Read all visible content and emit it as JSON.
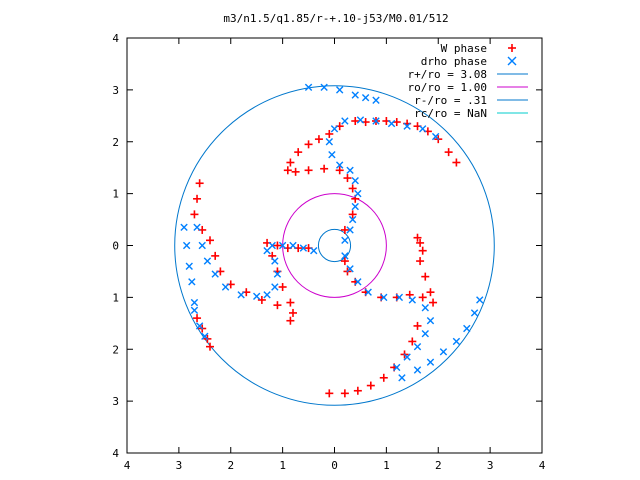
{
  "chart_data": {
    "type": "scatter",
    "title": "m3/n1.5/q1.85/r-+.10-j53/M0.01/512",
    "xlabel": "",
    "ylabel": "",
    "xlim": [
      -4,
      4
    ],
    "ylim": [
      -4,
      4
    ],
    "x_ticks": [
      "4",
      "3",
      "2",
      "1",
      "0",
      "1",
      "2",
      "3",
      "4"
    ],
    "y_ticks": [
      "4",
      "3",
      "2",
      "1",
      "0",
      "1",
      "2",
      "3",
      "4"
    ],
    "grid": false,
    "legend_position": "top-right",
    "series": [
      {
        "name": "W phase",
        "marker": "+",
        "color": "#ff0000",
        "points": [
          [
            2.35,
            1.6
          ],
          [
            2.2,
            1.8
          ],
          [
            2.0,
            2.05
          ],
          [
            1.8,
            2.2
          ],
          [
            1.6,
            2.3
          ],
          [
            1.4,
            2.35
          ],
          [
            1.2,
            2.38
          ],
          [
            1.0,
            2.4
          ],
          [
            0.8,
            2.4
          ],
          [
            0.6,
            2.38
          ],
          [
            0.4,
            2.4
          ],
          [
            0.1,
            2.3
          ],
          [
            -0.1,
            2.15
          ],
          [
            -0.3,
            2.05
          ],
          [
            -0.5,
            1.95
          ],
          [
            -0.7,
            1.8
          ],
          [
            -0.85,
            1.6
          ],
          [
            -0.9,
            1.45
          ],
          [
            -0.75,
            1.42
          ],
          [
            -0.5,
            1.45
          ],
          [
            -0.2,
            1.48
          ],
          [
            0.1,
            1.45
          ],
          [
            0.25,
            1.3
          ],
          [
            0.35,
            1.1
          ],
          [
            0.4,
            0.9
          ],
          [
            0.35,
            0.6
          ],
          [
            0.2,
            0.3
          ],
          [
            1.7,
            -0.1
          ],
          [
            1.65,
            0.05
          ],
          [
            1.6,
            0.15
          ],
          [
            1.65,
            -0.3
          ],
          [
            1.75,
            -0.6
          ],
          [
            1.85,
            -0.9
          ],
          [
            1.9,
            -1.1
          ],
          [
            1.7,
            -1.0
          ],
          [
            1.45,
            -0.95
          ],
          [
            1.2,
            -1.0
          ],
          [
            0.9,
            -1.0
          ],
          [
            0.6,
            -0.9
          ],
          [
            0.4,
            -0.7
          ],
          [
            0.25,
            -0.5
          ],
          [
            0.2,
            -0.3
          ],
          [
            1.6,
            -1.55
          ],
          [
            1.5,
            -1.85
          ],
          [
            1.35,
            -2.1
          ],
          [
            1.15,
            -2.35
          ],
          [
            0.95,
            -2.55
          ],
          [
            0.7,
            -2.7
          ],
          [
            0.45,
            -2.8
          ],
          [
            0.2,
            -2.85
          ],
          [
            -0.1,
            -2.85
          ],
          [
            -2.6,
            1.2
          ],
          [
            -2.65,
            0.9
          ],
          [
            -2.7,
            0.6
          ],
          [
            -2.55,
            0.3
          ],
          [
            -2.4,
            0.1
          ],
          [
            -2.3,
            -0.2
          ],
          [
            -2.2,
            -0.5
          ],
          [
            -2.0,
            -0.75
          ],
          [
            -1.7,
            -0.9
          ],
          [
            -1.4,
            -1.05
          ],
          [
            -1.1,
            -1.15
          ],
          [
            -0.85,
            -1.45
          ],
          [
            -0.8,
            -1.3
          ],
          [
            -0.85,
            -1.1
          ],
          [
            -1.0,
            -0.8
          ],
          [
            -1.1,
            -0.5
          ],
          [
            -1.2,
            -0.2
          ],
          [
            -1.3,
            0.05
          ],
          [
            -1.1,
            0.0
          ],
          [
            -0.9,
            -0.05
          ],
          [
            -0.7,
            -0.05
          ],
          [
            -0.5,
            -0.05
          ],
          [
            -2.65,
            -1.4
          ],
          [
            -2.55,
            -1.6
          ],
          [
            -2.45,
            -1.8
          ],
          [
            -2.4,
            -1.95
          ]
        ]
      },
      {
        "name": "drho phase",
        "marker": "x",
        "color": "#0080ff",
        "points": [
          [
            -0.5,
            3.05
          ],
          [
            -0.2,
            3.05
          ],
          [
            0.1,
            3.0
          ],
          [
            0.4,
            2.9
          ],
          [
            0.6,
            2.85
          ],
          [
            0.8,
            2.8
          ],
          [
            1.95,
            2.1
          ],
          [
            1.7,
            2.25
          ],
          [
            1.4,
            2.3
          ],
          [
            1.1,
            2.35
          ],
          [
            0.8,
            2.4
          ],
          [
            0.5,
            2.42
          ],
          [
            0.2,
            2.4
          ],
          [
            0.0,
            2.25
          ],
          [
            -0.1,
            2.0
          ],
          [
            -0.05,
            1.75
          ],
          [
            0.1,
            1.55
          ],
          [
            0.3,
            1.45
          ],
          [
            0.4,
            1.25
          ],
          [
            0.45,
            1.0
          ],
          [
            0.4,
            0.75
          ],
          [
            0.35,
            0.5
          ],
          [
            0.3,
            0.3
          ],
          [
            0.2,
            0.1
          ],
          [
            0.2,
            -0.2
          ],
          [
            0.3,
            -0.45
          ],
          [
            0.45,
            -0.7
          ],
          [
            0.65,
            -0.9
          ],
          [
            0.95,
            -1.0
          ],
          [
            1.25,
            -1.0
          ],
          [
            1.5,
            -1.05
          ],
          [
            1.75,
            -1.2
          ],
          [
            1.85,
            -1.45
          ],
          [
            1.75,
            -1.7
          ],
          [
            1.6,
            -1.95
          ],
          [
            1.4,
            -2.15
          ],
          [
            1.2,
            -2.35
          ],
          [
            2.8,
            -1.05
          ],
          [
            2.7,
            -1.3
          ],
          [
            2.55,
            -1.6
          ],
          [
            2.35,
            -1.85
          ],
          [
            2.1,
            -2.05
          ],
          [
            1.85,
            -2.25
          ],
          [
            1.6,
            -2.4
          ],
          [
            1.3,
            -2.55
          ],
          [
            -2.9,
            0.35
          ],
          [
            -2.85,
            0.0
          ],
          [
            -2.8,
            -0.4
          ],
          [
            -2.75,
            -0.7
          ],
          [
            -2.7,
            -1.1
          ],
          [
            -2.5,
            -1.75
          ],
          [
            -2.65,
            0.35
          ],
          [
            -2.55,
            0.0
          ],
          [
            -2.45,
            -0.3
          ],
          [
            -2.3,
            -0.55
          ],
          [
            -2.1,
            -0.8
          ],
          [
            -1.8,
            -0.95
          ],
          [
            -1.5,
            -0.98
          ],
          [
            -1.3,
            -0.95
          ],
          [
            -1.15,
            -0.8
          ],
          [
            -1.1,
            -0.55
          ],
          [
            -1.15,
            -0.3
          ],
          [
            -1.3,
            -0.1
          ],
          [
            -1.2,
            0.0
          ],
          [
            -1.0,
            0.0
          ],
          [
            -0.8,
            0.0
          ],
          [
            -0.6,
            -0.05
          ],
          [
            -0.4,
            -0.1
          ],
          [
            -2.7,
            -1.25
          ],
          [
            -2.6,
            -1.55
          ]
        ]
      }
    ],
    "circles": [
      {
        "label": "r+/ro = 3.08",
        "radius": 3.08,
        "color": "#0077cc"
      },
      {
        "label": "ro/ro = 1.00",
        "radius": 1.0,
        "color": "#cc00cc"
      },
      {
        "label": "r-/ro = .31",
        "radius": 0.31,
        "color": "#0077cc"
      },
      {
        "label": "rc/ro = NaN",
        "radius": null,
        "color": "#00cccc"
      }
    ]
  }
}
